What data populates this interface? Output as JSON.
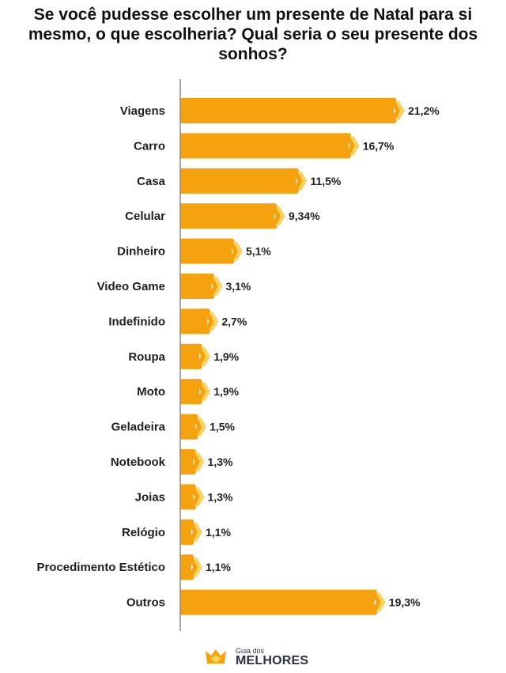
{
  "chart_data": {
    "type": "bar",
    "orientation": "horizontal",
    "title": "Se você pudesse escolher um presente de Natal para si mesmo, o que escolheria? Qual seria o seu presente dos sonhos?",
    "categories": [
      "Viagens",
      "Carro",
      "Casa",
      "Celular",
      "Dinheiro",
      "Video Game",
      "Indefinido",
      "Roupa",
      "Moto",
      "Geladeira",
      "Notebook",
      "Joias",
      "Relógio",
      "Procedimento Estético",
      "Outros"
    ],
    "values": [
      21.2,
      16.7,
      11.5,
      9.34,
      5.1,
      3.1,
      2.7,
      1.9,
      1.9,
      1.5,
      1.3,
      1.3,
      1.1,
      1.1,
      19.3
    ],
    "value_labels": [
      "21,2%",
      "16,7%",
      "11,5%",
      "9,34%",
      "5,1%",
      "3,1%",
      "2,7%",
      "1,9%",
      "1,9%",
      "1,5%",
      "1,3%",
      "1,3%",
      "1,1%",
      "1,1%",
      "19,3%"
    ],
    "unit": "%",
    "xlabel": "",
    "ylabel": "",
    "grid": false,
    "legend": "none",
    "colors": {
      "bar": "#F5A20E",
      "chevron_dark": "#F5A20E",
      "chevron_light": "#FFD25A",
      "axis": "#888888"
    }
  },
  "brand": {
    "logo_small": "Guia dos",
    "logo_big": "MELHORES",
    "logo_icon": "crown-icon",
    "colors": {
      "crown": "#F5A20E",
      "text": "#2A2F45"
    }
  }
}
